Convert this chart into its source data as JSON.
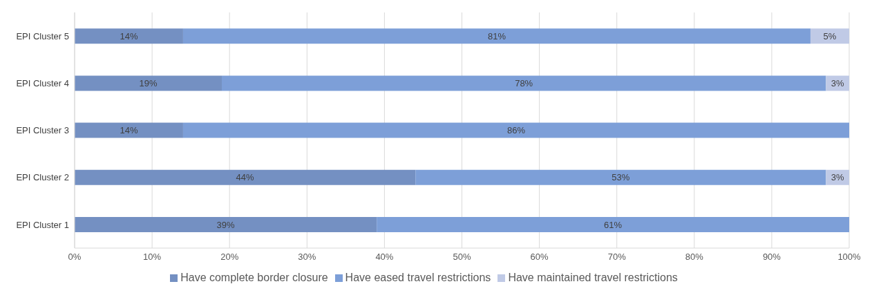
{
  "chart_data": {
    "type": "bar",
    "orientation": "horizontal",
    "stacked": true,
    "categories": [
      "EPI Cluster 5",
      "EPI Cluster 4",
      "EPI Cluster 3",
      "EPI Cluster 2",
      "EPI Cluster 1"
    ],
    "series": [
      {
        "name": "Have complete border closure",
        "color": "#7490c2",
        "values": [
          14,
          19,
          14,
          44,
          39
        ],
        "value_labels": [
          "14%",
          "19%",
          "14%",
          "44%",
          "39%"
        ]
      },
      {
        "name": "Have eased travel restrictions",
        "color": "#7d9fd8",
        "values": [
          81,
          78,
          86,
          53,
          61
        ],
        "value_labels": [
          "81%",
          "78%",
          "86%",
          "53%",
          "61%"
        ]
      },
      {
        "name": "Have maintained travel restrictions",
        "color": "#c0cae6",
        "values": [
          5,
          3,
          null,
          3,
          null
        ],
        "value_labels": [
          "5%",
          "3%",
          null,
          "3%",
          null
        ]
      }
    ],
    "xlim": [
      0,
      100
    ],
    "xticks": [
      {
        "value": 0,
        "label": "0%"
      },
      {
        "value": 10,
        "label": "10%"
      },
      {
        "value": 20,
        "label": "20%"
      },
      {
        "value": 30,
        "label": "30%"
      },
      {
        "value": 40,
        "label": "40%"
      },
      {
        "value": 50,
        "label": "50%"
      },
      {
        "value": 60,
        "label": "60%"
      },
      {
        "value": 70,
        "label": "70%"
      },
      {
        "value": 80,
        "label": "80%"
      },
      {
        "value": 90,
        "label": "90%"
      },
      {
        "value": 100,
        "label": "100%"
      }
    ],
    "grid": "x",
    "legend": "bottom"
  }
}
